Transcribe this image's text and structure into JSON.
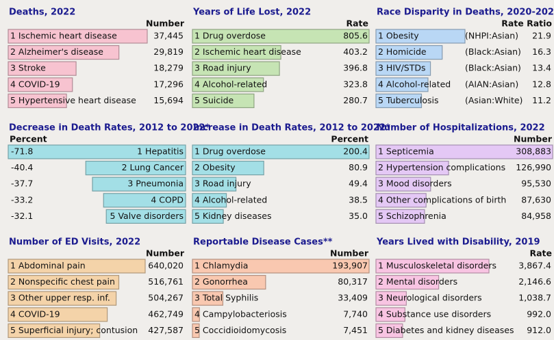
{
  "chart_data": [
    {
      "type": "bar",
      "title": "Deaths, 2022",
      "value_header": "Number",
      "color": "#f7c3d0",
      "categories": [
        "1 Ischemic heart disease",
        "2 Alzheimer's disease",
        "3 Stroke",
        "4 COVID-19",
        "5 Hypertensive heart disease"
      ],
      "values": [
        37445,
        29819,
        18279,
        17296,
        15694
      ],
      "value_labels": [
        "37,445",
        "29,819",
        "18,279",
        "17,296",
        "15,694"
      ]
    },
    {
      "type": "bar",
      "title": "Years of Life Lost, 2022",
      "value_header": "Rate",
      "color": "#c6e4b4",
      "categories": [
        "1 Drug overdose",
        "2 Ischemic heart disease",
        "3 Road injury",
        "4 Alcohol-related",
        "5 Suicide"
      ],
      "values": [
        805.6,
        403.2,
        396.8,
        323.8,
        280.7
      ]
    },
    {
      "type": "bar",
      "title": "Race Disparity in Deaths, 2020-2022",
      "value_header": "Rate Ratio",
      "color": "#b9d7f5",
      "categories": [
        "1 Obesity",
        "2 Homicide",
        "3 HIV/STDs",
        "4 Alcohol-related",
        "5 Tuberculosis"
      ],
      "groups": [
        "(NHPI:Asian)",
        "(Black:Asian)",
        "(Black:Asian)",
        "(AIAN:Asian)",
        "(Asian:White)"
      ],
      "values": [
        21.9,
        16.3,
        13.4,
        12.8,
        11.2
      ]
    },
    {
      "type": "bar",
      "title": "Decrease in Death Rates, 2012 to 2022*",
      "value_header": "Percent",
      "color": "#a3dfe6",
      "categories": [
        "1 Hepatitis",
        "2 Lung Cancer",
        "3 Pneumonia",
        "4 COPD",
        "5 Valve disorders"
      ],
      "values": [
        -71.8,
        -40.4,
        -37.7,
        -33.2,
        -32.1
      ]
    },
    {
      "type": "bar",
      "title": "Increase in Death Rates, 2012 to 2022*",
      "value_header": "Percent",
      "color": "#a3dfe6",
      "categories": [
        "1 Drug overdose",
        "2 Obesity",
        "3 Road injury",
        "4 Alcohol-related",
        "5 Kidney diseases"
      ],
      "values": [
        200.4,
        80.9,
        49.4,
        38.5,
        35.0
      ],
      "value_labels": [
        "200.4",
        "80.9",
        "49.4",
        "38.5",
        "35.0"
      ]
    },
    {
      "type": "bar",
      "title": "Number of Hospitalizations, 2022",
      "value_header": "Number",
      "color": "#e4c8f5",
      "categories": [
        "1 Septicemia",
        "2 Hypertension complications",
        "3 Mood disorders",
        "4 Other complications of birth",
        "5 Schizophrenia"
      ],
      "values": [
        308883,
        126990,
        95530,
        87630,
        84958
      ],
      "value_labels": [
        "308,883",
        "126,990",
        "95,530",
        "87,630",
        "84,958"
      ]
    },
    {
      "type": "bar",
      "title": "Number of ED Visits, 2022",
      "value_header": "Number",
      "color": "#f4d3a9",
      "categories": [
        "1 Abdominal pain",
        "2 Nonspecific chest pain",
        "3 Other upper resp. inf.",
        "4 COVID-19",
        "5 Superficial injury; contusion"
      ],
      "values": [
        640020,
        516761,
        504267,
        462749,
        427587
      ],
      "value_labels": [
        "640,020",
        "516,761",
        "504,267",
        "462,749",
        "427,587"
      ]
    },
    {
      "type": "bar",
      "title": "Reportable Disease Cases**",
      "value_header": "Number",
      "color": "#f9c8b0",
      "categories": [
        "1 Chlamydia",
        "2 Gonorrhea",
        "3 Total Syphilis",
        "4 Campylobacteriosis",
        "5 Coccidioidomycosis"
      ],
      "values": [
        193907,
        80317,
        33409,
        7740,
        7451
      ],
      "value_labels": [
        "193,907",
        "80,317",
        "33,409",
        "7,740",
        "7,451"
      ]
    },
    {
      "type": "bar",
      "title": "Years Lived with Disability, 2019",
      "value_header": "Rate",
      "color": "#f8c4e2",
      "categories": [
        "1 Musculoskeletal disorders",
        "2 Mental disorders",
        "3 Neurological disorders",
        "4 Substance use disorders",
        "5 Diabetes and kidney diseases"
      ],
      "values": [
        3867.4,
        2146.6,
        1038.7,
        992.0,
        912.0
      ],
      "value_labels": [
        "3,867.4",
        "2,146.6",
        "1,038.7",
        "992.0",
        "912.0"
      ]
    }
  ]
}
